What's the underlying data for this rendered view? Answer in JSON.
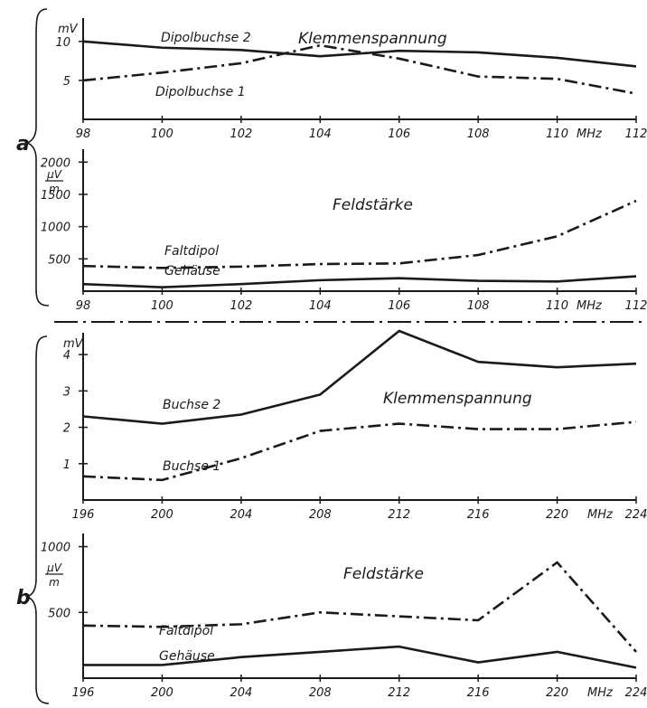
{
  "groups": [
    {
      "label": "a"
    },
    {
      "label": "b"
    }
  ],
  "chart_data": [
    {
      "type": "line",
      "title": "Klemmenspannung",
      "ylabel": "mV",
      "x_unit": "MHz",
      "x": [
        98,
        100,
        102,
        104,
        106,
        108,
        110,
        112
      ],
      "x_ticks": [
        "98",
        "100",
        "102",
        "104",
        "106",
        "108",
        "110",
        "112"
      ],
      "y_ticks": [
        "5",
        "10"
      ],
      "xlim": [
        98,
        112
      ],
      "ylim": [
        0,
        13
      ],
      "series": [
        {
          "name": "Dipolbuchse 2",
          "style": "solid",
          "values": [
            10,
            9.2,
            8.9,
            8.1,
            8.8,
            8.6,
            7.9,
            6.8
          ]
        },
        {
          "name": "Dipolbuchse 1",
          "style": "dashdot",
          "values": [
            5.0,
            6.0,
            7.2,
            9.5,
            7.8,
            5.5,
            5.2,
            3.3
          ]
        }
      ]
    },
    {
      "type": "line",
      "title": "Feldstärke",
      "ylabel_num": "µV",
      "ylabel_den": "m",
      "x_unit": "MHz",
      "x": [
        98,
        100,
        102,
        104,
        106,
        108,
        110,
        112
      ],
      "x_ticks": [
        "98",
        "100",
        "102",
        "104",
        "106",
        "108",
        "110",
        "112"
      ],
      "y_ticks": [
        "500",
        "1000",
        "1500",
        "2000"
      ],
      "xlim": [
        98,
        112
      ],
      "ylim": [
        0,
        2200
      ],
      "series": [
        {
          "name": "Faltdipol",
          "style": "dashdot",
          "values": [
            390,
            360,
            380,
            420,
            430,
            560,
            850,
            1400
          ]
        },
        {
          "name": "Gehäuse",
          "style": "solid",
          "values": [
            110,
            60,
            110,
            170,
            200,
            160,
            150,
            230
          ]
        }
      ]
    },
    {
      "type": "line",
      "title": "Klemmenspannung",
      "ylabel": "mV",
      "x_unit": "MHz",
      "x": [
        196,
        200,
        204,
        208,
        212,
        216,
        220,
        224
      ],
      "x_ticks": [
        "196",
        "200",
        "204",
        "208",
        "212",
        "216",
        "220",
        "224"
      ],
      "y_ticks": [
        "1",
        "2",
        "3",
        "4"
      ],
      "xlim": [
        196,
        224
      ],
      "ylim": [
        0,
        4.6
      ],
      "series": [
        {
          "name": "Buchse 2",
          "style": "solid",
          "values": [
            2.3,
            2.1,
            2.35,
            2.9,
            4.65,
            3.8,
            3.65,
            3.75
          ]
        },
        {
          "name": "Buchse 1",
          "style": "dashdot",
          "values": [
            0.65,
            0.55,
            1.15,
            1.9,
            2.1,
            1.95,
            1.95,
            2.15
          ]
        }
      ]
    },
    {
      "type": "line",
      "title": "Feldstärke",
      "ylabel_num": "µV",
      "ylabel_den": "m",
      "x_unit": "MHz",
      "x": [
        196,
        200,
        204,
        208,
        212,
        216,
        220,
        224
      ],
      "x_ticks": [
        "196",
        "200",
        "204",
        "208",
        "212",
        "216",
        "220",
        "224"
      ],
      "y_ticks": [
        "500",
        "1000"
      ],
      "xlim": [
        196,
        224
      ],
      "ylim": [
        0,
        1100
      ],
      "series": [
        {
          "name": "Faltdipol",
          "style": "dashdot",
          "values": [
            400,
            390,
            410,
            500,
            470,
            440,
            880,
            200
          ]
        },
        {
          "name": "Gehäuse",
          "style": "solid",
          "values": [
            100,
            100,
            160,
            200,
            240,
            120,
            200,
            80
          ]
        }
      ]
    }
  ]
}
